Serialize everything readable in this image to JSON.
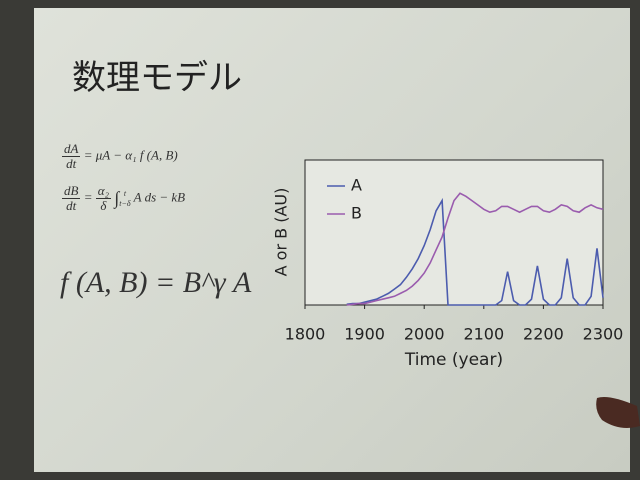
{
  "slide": {
    "title": "数理モデル",
    "eq1": {
      "num": "dA",
      "den": "dt",
      "rhs": "= μA − α₁ f (A, B)"
    },
    "eq2": {
      "num": "dB",
      "den": "dt",
      "eq": "=",
      "cnum": "α₂",
      "cden": "δ",
      "int": "∫",
      "upper": "t",
      "lower": "t−δ",
      "rhs": "A  ds − kB"
    },
    "eq3": "f (A, B) = B^γ A"
  },
  "chart_data": {
    "type": "line",
    "ylabel": "A or B (AU)",
    "xlabel": "Time (year)",
    "x": [
      1800,
      1810,
      1820,
      1830,
      1840,
      1850,
      1860,
      1870,
      1880,
      1890,
      1900,
      1910,
      1920,
      1930,
      1940,
      1950,
      1960,
      1970,
      1980,
      1990,
      2000,
      2010,
      2020,
      2030,
      2040,
      2050,
      2060,
      2070,
      2080,
      2090,
      2100,
      2110,
      2120,
      2130,
      2140,
      2150,
      2160,
      2170,
      2180,
      2190,
      2200,
      2210,
      2220,
      2230,
      2240,
      2250,
      2260,
      2270,
      2280,
      2290,
      2300
    ],
    "xlim": [
      1800,
      2300
    ],
    "xticks": [
      1800,
      1900,
      2000,
      2100,
      2200,
      2300
    ],
    "ylim": [
      0,
      1
    ],
    "legend": "top-left",
    "series": [
      {
        "name": "A",
        "color": "#4c5cae",
        "values": [
          null,
          null,
          null,
          null,
          null,
          null,
          null,
          0.005,
          0.01,
          0.01,
          0.02,
          0.03,
          0.04,
          0.06,
          0.08,
          0.11,
          0.14,
          0.19,
          0.25,
          0.32,
          0.41,
          0.52,
          0.65,
          0.72,
          0,
          0,
          0,
          0,
          0,
          0,
          0,
          0,
          0,
          0.03,
          0.23,
          0.03,
          0,
          0,
          0.04,
          0.27,
          0.04,
          0,
          0,
          0.05,
          0.32,
          0.05,
          0,
          0,
          0.06,
          0.39,
          0.05
        ]
      },
      {
        "name": "B",
        "color": "#9a5cae",
        "values": [
          null,
          null,
          null,
          null,
          null,
          null,
          null,
          0,
          0.005,
          0.01,
          0.01,
          0.02,
          0.03,
          0.04,
          0.05,
          0.06,
          0.08,
          0.1,
          0.13,
          0.17,
          0.22,
          0.29,
          0.38,
          0.47,
          0.6,
          0.72,
          0.77,
          0.75,
          0.72,
          0.69,
          0.66,
          0.64,
          0.65,
          0.68,
          0.68,
          0.66,
          0.64,
          0.66,
          0.68,
          0.68,
          0.65,
          0.64,
          0.66,
          0.69,
          0.68,
          0.65,
          0.64,
          0.67,
          0.69,
          0.67,
          0.66
        ]
      }
    ]
  }
}
